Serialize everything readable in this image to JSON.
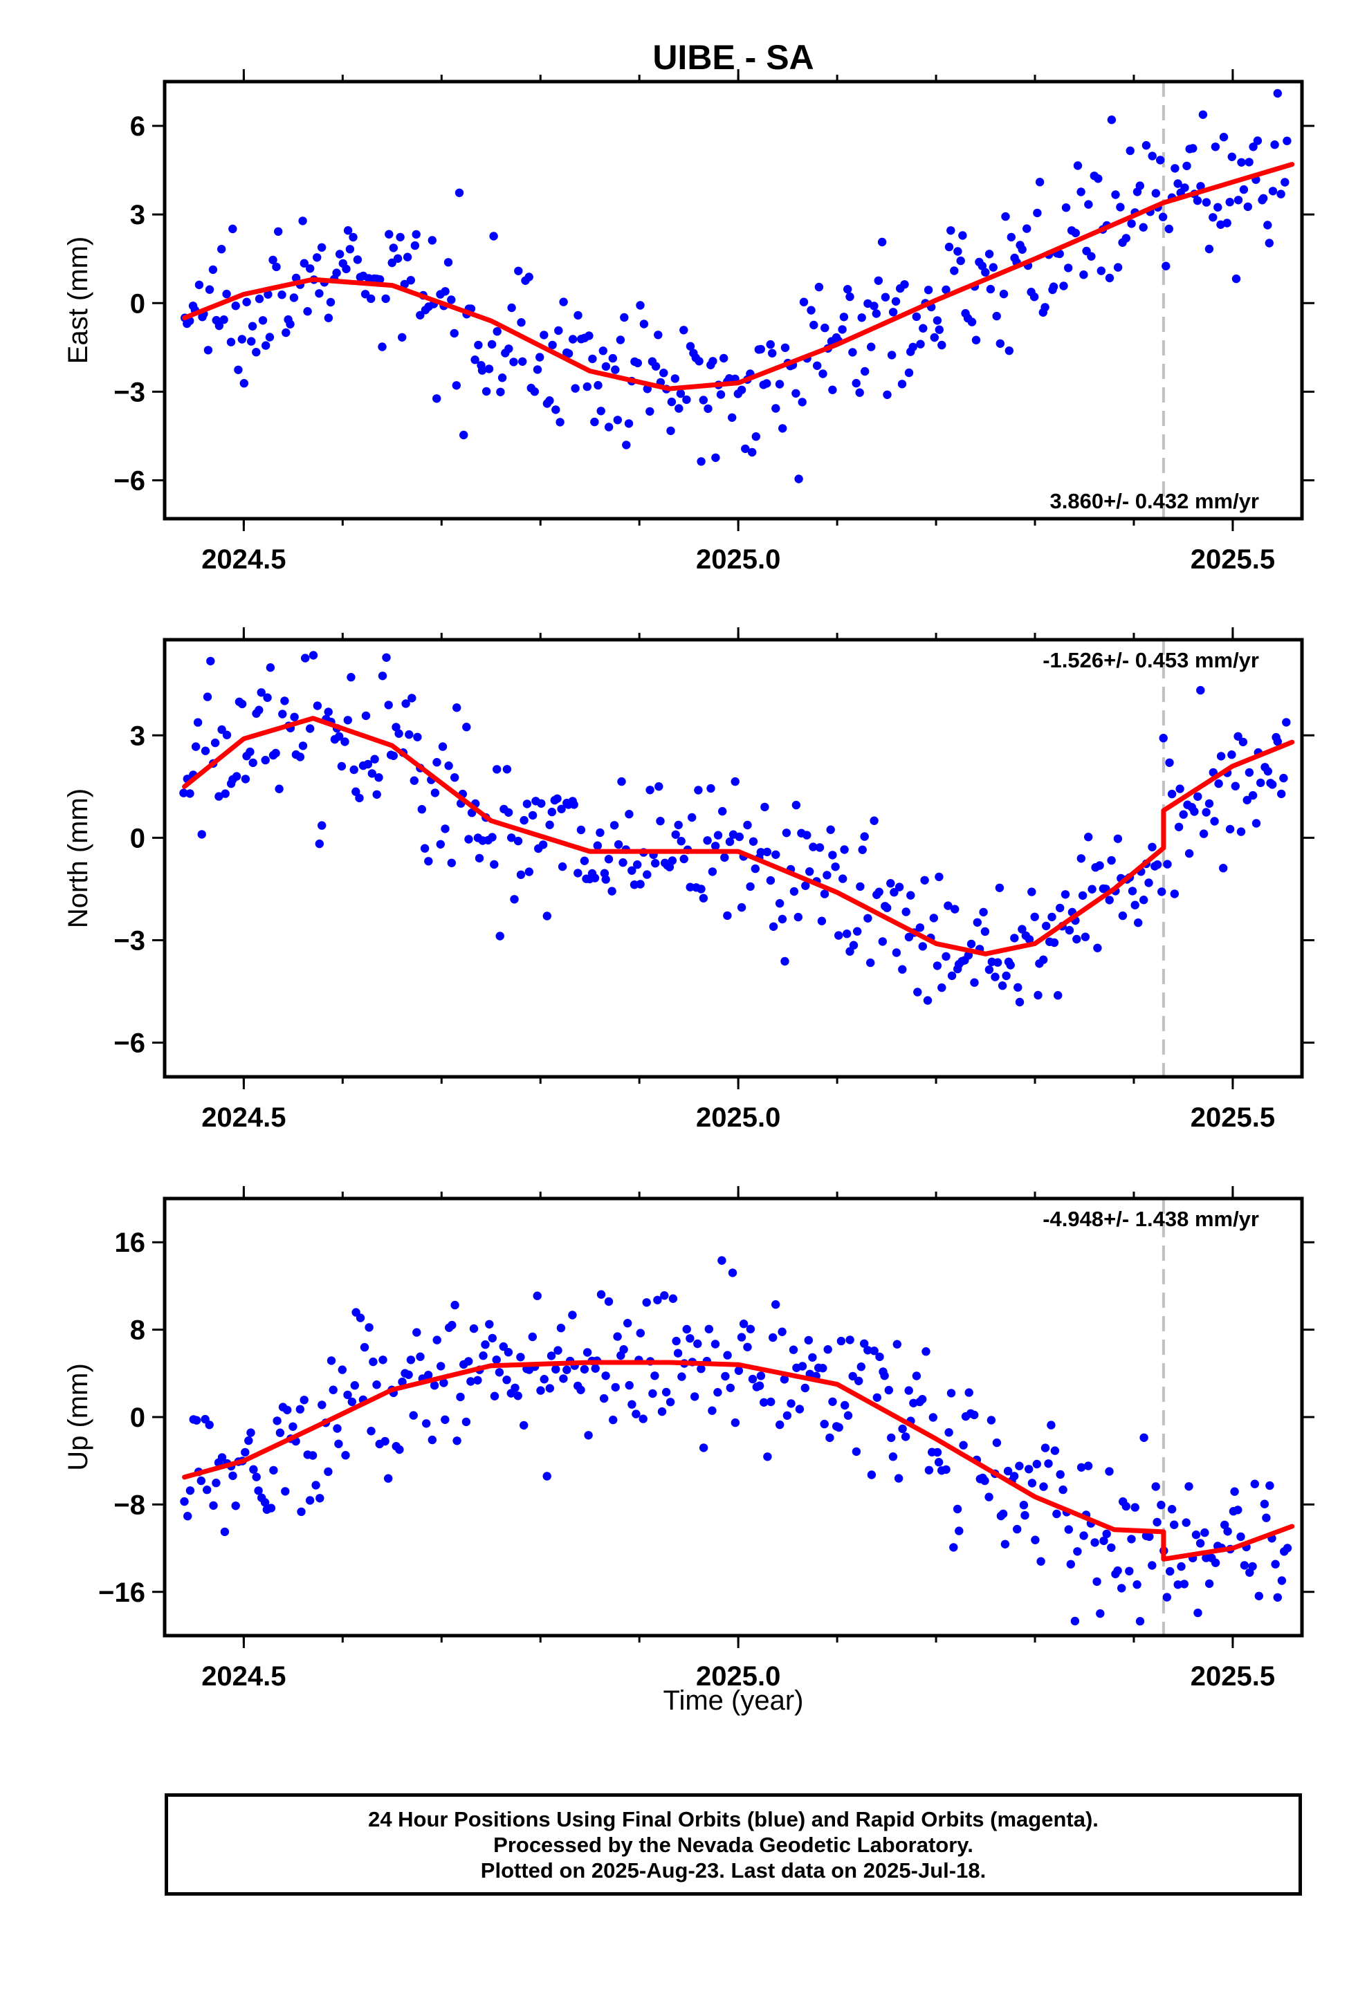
{
  "title": "UIBE - SA",
  "xlabel": "Time (year)",
  "footer": {
    "line1": "24 Hour Positions Using Final Orbits (blue) and Rapid Orbits (magenta).",
    "line2": "Processed by the Nevada Geodetic Laboratory.",
    "line3": "Plotted on 2025-Aug-23. Last data on 2025-Jul-18."
  },
  "colors": {
    "points": "#0000ff",
    "fit": "#ff0000",
    "event_line": "#c0c0c0",
    "frame": "#000000"
  },
  "chart_data": [
    {
      "type": "scatter",
      "ylabel": "East (mm)",
      "rate_label": "3.860+/- 0.432 mm/yr",
      "xlim": [
        2024.42,
        2025.57
      ],
      "ylim": [
        -7.3,
        7.5
      ],
      "xticks": [
        2024.5,
        2025.0,
        2025.5
      ],
      "xtick_labels": [
        "2024.5",
        "2025.0",
        "2025.5"
      ],
      "yticks": [
        -6,
        -3,
        0,
        3,
        6
      ],
      "ytick_labels": [
        "−6",
        "−3",
        "0",
        "3",
        "6"
      ],
      "event_x": 2025.43,
      "fit_x": [
        2024.44,
        2024.5,
        2024.57,
        2024.65,
        2024.75,
        2024.85,
        2024.93,
        2025.0,
        2025.1,
        2025.2,
        2025.3,
        2025.43,
        2025.56
      ],
      "fit_y": [
        -0.5,
        0.3,
        0.8,
        0.6,
        -0.6,
        -2.3,
        -2.9,
        -2.7,
        -1.4,
        0.1,
        1.5,
        3.4,
        4.7
      ]
    },
    {
      "type": "scatter",
      "ylabel": "North (mm)",
      "rate_label": "-1.526+/- 0.453 mm/yr",
      "xlim": [
        2024.42,
        2025.57
      ],
      "ylim": [
        -7.0,
        5.8
      ],
      "xticks": [
        2024.5,
        2025.0,
        2025.5
      ],
      "xtick_labels": [
        "2024.5",
        "2025.0",
        "2025.5"
      ],
      "yticks": [
        -6,
        -3,
        0,
        3
      ],
      "ytick_labels": [
        "−6",
        "−3",
        "0",
        "3"
      ],
      "event_x": 2025.43,
      "fit_x": [
        2024.44,
        2024.5,
        2024.57,
        2024.65,
        2024.75,
        2024.85,
        2024.93,
        2025.0,
        2025.1,
        2025.2,
        2025.25,
        2025.3,
        2025.38,
        2025.43,
        2025.43,
        2025.5,
        2025.56
      ],
      "fit_y": [
        1.5,
        2.9,
        3.5,
        2.7,
        0.5,
        -0.4,
        -0.4,
        -0.4,
        -1.6,
        -3.1,
        -3.4,
        -3.1,
        -1.5,
        -0.3,
        0.8,
        2.1,
        2.8
      ]
    },
    {
      "type": "scatter",
      "ylabel": "Up (mm)",
      "rate_label": "-4.948+/- 1.438 mm/yr",
      "xlim": [
        2024.42,
        2025.57
      ],
      "ylim": [
        -20,
        20
      ],
      "xticks": [
        2024.5,
        2025.0,
        2025.5
      ],
      "xtick_labels": [
        "2024.5",
        "2025.0",
        "2025.5"
      ],
      "yticks": [
        -16,
        -8,
        0,
        8,
        16
      ],
      "ytick_labels": [
        "−16",
        "−8",
        "0",
        "8",
        "16"
      ],
      "event_x": 2025.43,
      "fit_x": [
        2024.44,
        2024.5,
        2024.57,
        2024.65,
        2024.75,
        2024.85,
        2024.93,
        2025.0,
        2025.1,
        2025.2,
        2025.3,
        2025.38,
        2025.43,
        2025.43,
        2025.5,
        2025.56
      ],
      "fit_y": [
        -5.5,
        -4.0,
        -1.0,
        2.5,
        4.7,
        5.0,
        5.0,
        4.8,
        3.0,
        -2.0,
        -7.3,
        -10.3,
        -10.5,
        -13.0,
        -12.0,
        -10.0
      ]
    }
  ]
}
